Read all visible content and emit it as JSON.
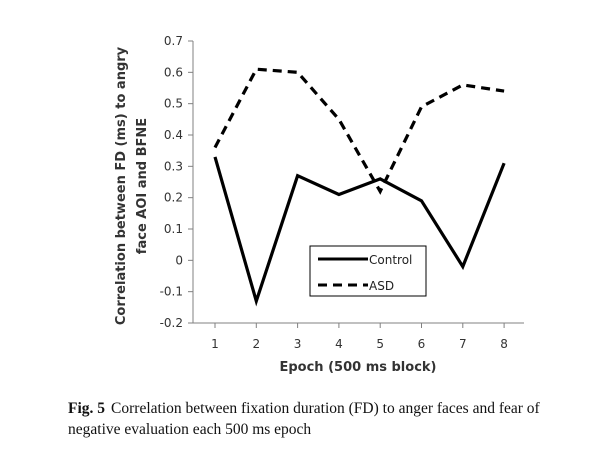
{
  "chart_data": {
    "type": "line",
    "title": "",
    "xlabel": "Epoch (500 ms block)",
    "ylabel_line1": "Correlation between FD (ms) to angry",
    "ylabel_line2": "face AOI and BFNE",
    "categories": [
      1,
      2,
      3,
      4,
      5,
      6,
      7,
      8
    ],
    "y_ticks": [
      0.7,
      0.6,
      0.5,
      0.4,
      0.3,
      0.2,
      0.1,
      0,
      -0.1,
      -0.2
    ],
    "y_tick_labels": [
      "0.7",
      "0.6",
      "0.5",
      "0.4",
      "0.3",
      "0.2",
      "0.1",
      "0",
      "-0.1",
      "-0.2"
    ],
    "ylim": [
      -0.2,
      0.7
    ],
    "grid": false,
    "legend_position": "lower-right",
    "series": [
      {
        "name": "Control",
        "style": "solid",
        "color": "#000000",
        "values": [
          0.33,
          -0.13,
          0.27,
          0.21,
          0.26,
          0.19,
          -0.02,
          0.31
        ]
      },
      {
        "name": "ASD",
        "style": "dashed",
        "color": "#000000",
        "values": [
          0.36,
          0.61,
          0.6,
          0.45,
          0.22,
          0.49,
          0.56,
          0.54
        ]
      }
    ]
  },
  "caption": {
    "label": "Fig. 5",
    "text": "Correlation between fixation duration (FD) to anger faces and fear of negative evaluation each 500 ms epoch"
  }
}
